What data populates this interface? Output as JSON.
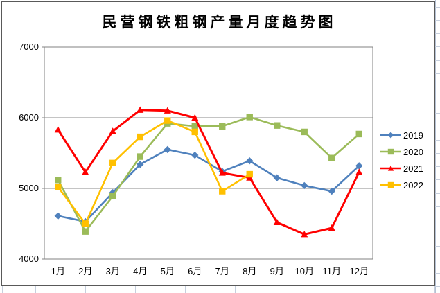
{
  "chart_data": {
    "type": "line",
    "title": "民营钢铁粗钢产量月度趋势图",
    "categories": [
      "1月",
      "2月",
      "3月",
      "4月",
      "5月",
      "6月",
      "7月",
      "8月",
      "9月",
      "10月",
      "11月",
      "12月"
    ],
    "series": [
      {
        "name": "2019",
        "color": "#4f81bd",
        "marker": "diamond",
        "values": [
          4610,
          4530,
          4940,
          5340,
          5550,
          5470,
          5240,
          5390,
          5150,
          5040,
          4960,
          5320
        ]
      },
      {
        "name": "2020",
        "color": "#9bbb59",
        "marker": "square",
        "values": [
          5120,
          4390,
          4890,
          5450,
          5920,
          5880,
          5880,
          6010,
          5890,
          5800,
          5430,
          5770
        ]
      },
      {
        "name": "2021",
        "color": "#ff0000",
        "marker": "triangle",
        "values": [
          5830,
          5230,
          5810,
          6110,
          6100,
          6000,
          5220,
          5150,
          4520,
          4350,
          4440,
          5230
        ]
      },
      {
        "name": "2022",
        "color": "#ffc000",
        "marker": "square",
        "values": [
          5020,
          4500,
          5360,
          5730,
          5960,
          5800,
          4960,
          5200,
          null,
          null,
          null,
          null
        ]
      }
    ],
    "ylim": [
      4000,
      7000
    ],
    "yticks": [
      4000,
      5000,
      6000,
      7000
    ],
    "grid": true,
    "legend_position": "right",
    "axis_color": "#808080",
    "gridline_color": "#898989",
    "label_color": "#000000"
  }
}
